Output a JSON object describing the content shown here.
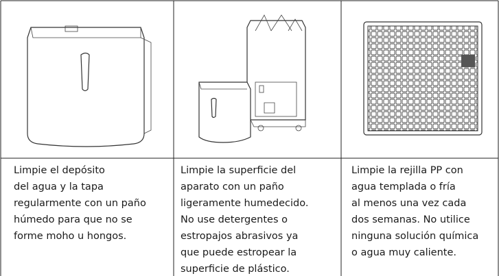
{
  "cells": [
    {
      "lines": [
        "Limpie el depósito",
        "del agua y la tapa",
        "regularmente con un paño",
        "húmedo para que no se",
        "forme moho u hongos."
      ]
    },
    {
      "lines": [
        "Limpie la superficie del",
        "aparato con un paño",
        "ligeramente humedecido.",
        "No use detergentes o",
        "estropajos abrasivos ya",
        "que puede estropear la",
        "superficie de plástico."
      ]
    },
    {
      "lines": [
        "Limpie la rejilla PP con",
        "agua templada o fría",
        "al menos una vez cada",
        "dos semanas. No utilice",
        "ninguna solución química",
        "o agua muy caliente."
      ]
    }
  ]
}
